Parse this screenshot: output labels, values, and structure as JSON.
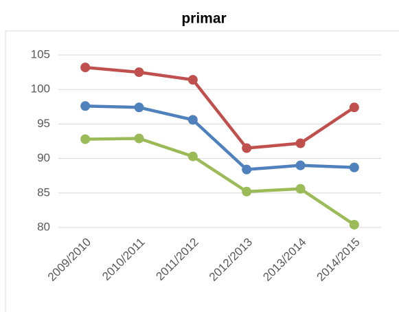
{
  "chart_data": {
    "type": "line",
    "title": "primar",
    "categories": [
      "2009/2010",
      "2010/2011",
      "2011/2012",
      "2012/2013",
      "2013/2014",
      "2014/2015"
    ],
    "series": [
      {
        "color": "#c0504d",
        "values": [
          103.2,
          102.5,
          101.4,
          91.5,
          92.2,
          97.4
        ]
      },
      {
        "color": "#4f81bd",
        "values": [
          97.6,
          97.4,
          95.6,
          88.4,
          89.0,
          88.7
        ]
      },
      {
        "color": "#9bbb59",
        "values": [
          92.8,
          92.9,
          90.3,
          85.2,
          85.6,
          80.4
        ]
      }
    ],
    "ylim": [
      80,
      105
    ],
    "yticks": [
      80,
      85,
      90,
      95,
      100,
      105
    ],
    "grid": true
  }
}
